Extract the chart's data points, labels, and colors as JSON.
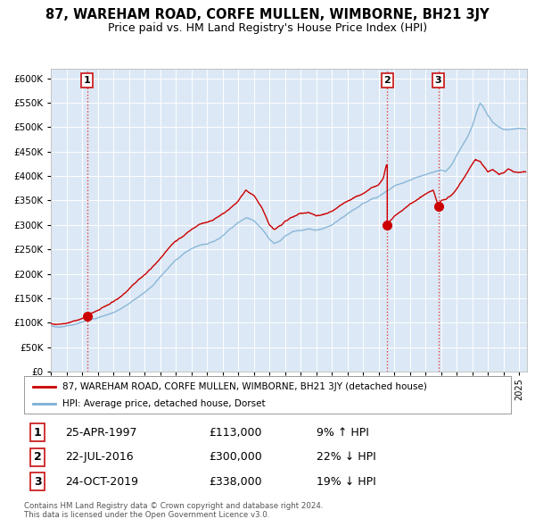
{
  "title": "87, WAREHAM ROAD, CORFE MULLEN, WIMBORNE, BH21 3JY",
  "subtitle": "Price paid vs. HM Land Registry's House Price Index (HPI)",
  "legend_line1": "87, WAREHAM ROAD, CORFE MULLEN, WIMBORNE, BH21 3JY (detached house)",
  "legend_line2": "HPI: Average price, detached house, Dorset",
  "sale1_date": "25-APR-1997",
  "sale1_price": "£113,000",
  "sale1_hpi": "9% ↑ HPI",
  "sale1_year": 1997.32,
  "sale1_value": 113000,
  "sale2_date": "22-JUL-2016",
  "sale2_price": "£300,000",
  "sale2_hpi": "22% ↓ HPI",
  "sale2_year": 2016.55,
  "sale2_value": 300000,
  "sale3_date": "24-OCT-2019",
  "sale3_price": "£338,000",
  "sale3_hpi": "19% ↓ HPI",
  "sale3_year": 2019.82,
  "sale3_value": 338000,
  "hpi_color": "#7bafd4",
  "price_color": "#cc0000",
  "dashed_line_color": "#dd4444",
  "plot_bg_color": "#dce8f5",
  "grid_color": "#ffffff",
  "spine_color": "#bbbbbb",
  "ylim_min": 0,
  "ylim_max": 620000,
  "xlim_min": 1995.0,
  "xlim_max": 2025.5,
  "copyright_text": "Contains HM Land Registry data © Crown copyright and database right 2024.\nThis data is licensed under the Open Government Licence v3.0."
}
